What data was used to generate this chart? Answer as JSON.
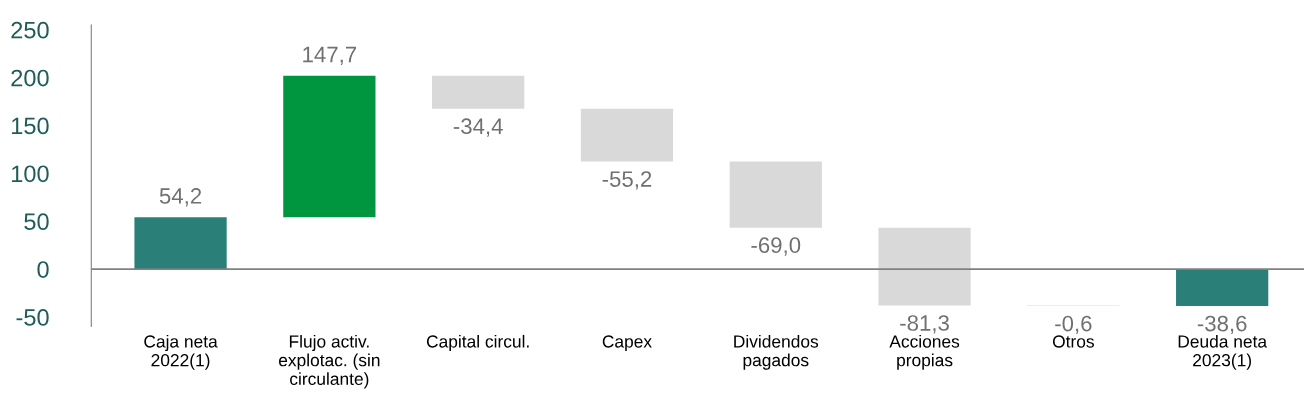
{
  "chart_data": {
    "type": "bar",
    "categories": [
      "Caja neta\n2022(1)",
      "Flujo activ.\nexplotac. (sin\ncirculante)",
      "Capital circul.",
      "Capex",
      "Dividendos\npagados",
      "Acciones\npropias",
      "Otros",
      "Deuda neta\n2023(1)"
    ],
    "values": [
      54.2,
      147.7,
      -34.4,
      -55.2,
      -69.0,
      -81.3,
      -0.6,
      -38.6
    ],
    "base": [
      0,
      54.2,
      201.9,
      167.5,
      112.3,
      43.3,
      -38.0,
      0
    ],
    "colors": [
      "#2a8078",
      "#00963f",
      "#d9d9d9",
      "#d9d9d9",
      "#d9d9d9",
      "#d9d9d9",
      "#d9d9d9",
      "#2a8078"
    ],
    "value_labels": [
      "54,2",
      "147,7",
      "-34,4",
      "-55,2",
      "-69,0",
      "-81,3",
      "-0,6",
      "-38,6"
    ],
    "ylim": [
      -60,
      255
    ],
    "yticks": [
      -50,
      0,
      50,
      100,
      150,
      200,
      250
    ],
    "ref_lines": [
      {
        "axis": "y",
        "value": 0,
        "color": "#808080"
      }
    ],
    "grid": false,
    "legend": false
  }
}
